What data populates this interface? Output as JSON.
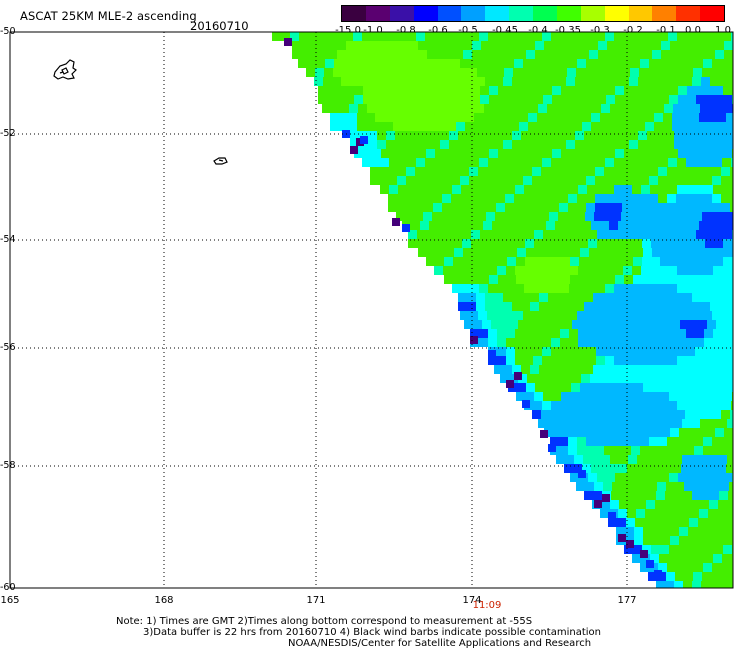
{
  "header": {
    "title": "ASCAT 25KM MLE-2 ascending",
    "date": "20160710"
  },
  "colorbar": {
    "labels": [
      "-15.0",
      "-1.0",
      "-0.8",
      "-0.6",
      "-0.5",
      "-0.45",
      "-0.4",
      "-0.35",
      "-0.3",
      "-0.2",
      "-0.1",
      "0.0",
      "1.0"
    ],
    "colors": [
      "#3a0040",
      "#5a0070",
      "#3a10a8",
      "#0000ff",
      "#0050ff",
      "#00a0ff",
      "#00e8ff",
      "#00ffb0",
      "#00ff50",
      "#40ff00",
      "#a8ff00",
      "#ffff00",
      "#ffc800",
      "#ff8000",
      "#ff3000",
      "#ff0000"
    ]
  },
  "map": {
    "lat_labels": [
      "-50",
      "-52",
      "-54",
      "-56",
      "-58",
      "-60"
    ],
    "lon_labels": [
      "165",
      "168",
      "171",
      "174",
      "177"
    ],
    "time_label": "11:09",
    "swath_colors": {
      "green": "#44ee00",
      "lime": "#66ff00",
      "teal": "#00ffb0",
      "cyan": "#00ffff",
      "sky": "#00b8ff",
      "blue": "#0033ff",
      "indigo": "#2a00b0",
      "purple": "#45007a"
    }
  },
  "notes": {
    "line1": "Note: 1) Times are GMT 2)Times along bottom correspond to measurement at -55S",
    "line2": "3)Data buffer is 22 hrs from 20160710 4) Black wind barbs indicate possible contamination",
    "line3": "NOAA/NESDIS/Center for Satellite Applications and Research"
  }
}
